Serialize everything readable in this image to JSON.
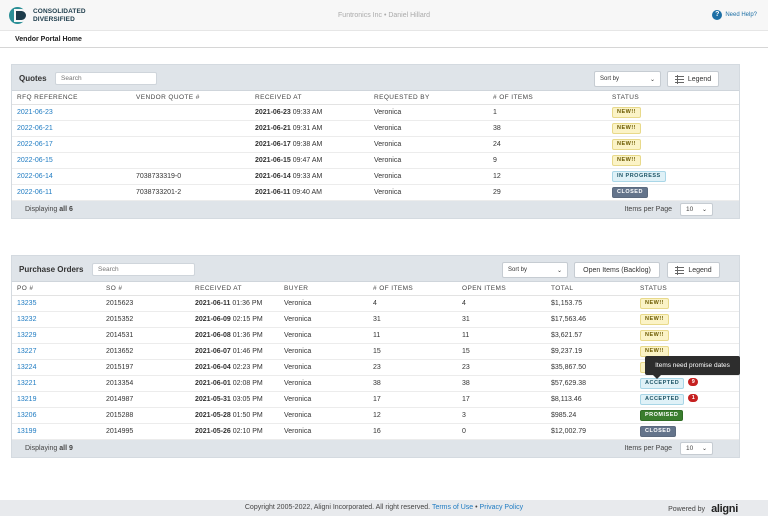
{
  "header": {
    "logo_line1": "CONSOLIDATED",
    "logo_line2": "DIVERSIFIED",
    "center_title": "Funtronics Inc • Daniel Hillard",
    "help_label": "Need Help?"
  },
  "page_title": "Vendor Portal Home",
  "quotes": {
    "title": "Quotes",
    "search_placeholder": "Search",
    "sort_label": "Sort by",
    "legend_label": "Legend",
    "columns": [
      "RFQ REFERENCE",
      "VENDOR QUOTE #",
      "RECEIVED AT",
      "REQUESTED BY",
      "# OF ITEMS",
      "STATUS"
    ],
    "rows": [
      {
        "ref": "2021-06-23",
        "vq": "",
        "date": "2021-06-23",
        "time": "09:33 AM",
        "by": "Veronica",
        "items": "1",
        "status": "NEW!!",
        "kind": "new"
      },
      {
        "ref": "2022-06-21",
        "vq": "",
        "date": "2021-06-21",
        "time": "09:31 AM",
        "by": "Veronica",
        "items": "38",
        "status": "NEW!!",
        "kind": "new"
      },
      {
        "ref": "2022-06-17",
        "vq": "",
        "date": "2021-06-17",
        "time": "09:38 AM",
        "by": "Veronica",
        "items": "24",
        "status": "NEW!!",
        "kind": "new"
      },
      {
        "ref": "2022-06-15",
        "vq": "",
        "date": "2021-06-15",
        "time": "09:47 AM",
        "by": "Veronica",
        "items": "9",
        "status": "NEW!!",
        "kind": "new"
      },
      {
        "ref": "2022-06-14",
        "vq": "7038733319-0",
        "date": "2021-06-14",
        "time": "09:33 AM",
        "by": "Veronica",
        "items": "12",
        "status": "IN PROGRESS",
        "kind": "prog"
      },
      {
        "ref": "2022-06-11",
        "vq": "7038733201-2",
        "date": "2021-06-11",
        "time": "09:40 AM",
        "by": "Veronica",
        "items": "29",
        "status": "CLOSED",
        "kind": "closed"
      }
    ],
    "displaying_prefix": "Displaying",
    "displaying_count": "all 6",
    "per_page_label": "Items per Page",
    "per_page_value": "10"
  },
  "purchase_orders": {
    "title": "Purchase Orders",
    "search_placeholder": "Search",
    "sort_label": "Sort by",
    "backlog_label": "Open Items (Backlog)",
    "legend_label": "Legend",
    "columns": [
      "PO #",
      "SO #",
      "RECEIVED AT",
      "BUYER",
      "# OF ITEMS",
      "OPEN ITEMS",
      "TOTAL",
      "STATUS"
    ],
    "rows": [
      {
        "po": "13235",
        "so": "2015623",
        "date": "2021-06-11",
        "time": "01:36 PM",
        "buyer": "Veronica",
        "items": "4",
        "open": "4",
        "total": "$1,153.75",
        "status": "NEW!!",
        "kind": "new",
        "count": ""
      },
      {
        "po": "13232",
        "so": "2015352",
        "date": "2021-06-09",
        "time": "02:15 PM",
        "buyer": "Veronica",
        "items": "31",
        "open": "31",
        "total": "$17,563.46",
        "status": "NEW!!",
        "kind": "new",
        "count": ""
      },
      {
        "po": "13229",
        "so": "2014531",
        "date": "2021-06-08",
        "time": "01:36 PM",
        "buyer": "Veronica",
        "items": "11",
        "open": "11",
        "total": "$3,621.57",
        "status": "NEW!!",
        "kind": "new",
        "count": ""
      },
      {
        "po": "13227",
        "so": "2013652",
        "date": "2021-06-07",
        "time": "01:46 PM",
        "buyer": "Veronica",
        "items": "15",
        "open": "15",
        "total": "$9,237.19",
        "status": "NEW!!",
        "kind": "new",
        "count": ""
      },
      {
        "po": "13224",
        "so": "2015197",
        "date": "2021-06-04",
        "time": "02:23 PM",
        "buyer": "Veronica",
        "items": "23",
        "open": "23",
        "total": "$35,867.50",
        "status": "NEW!!",
        "kind": "new",
        "count": ""
      },
      {
        "po": "13221",
        "so": "2013354",
        "date": "2021-06-01",
        "time": "02:08 PM",
        "buyer": "Veronica",
        "items": "38",
        "open": "38",
        "total": "$57,629.38",
        "status": "ACCEPTED",
        "kind": "acc",
        "count": "9"
      },
      {
        "po": "13219",
        "so": "2014987",
        "date": "2021-05-31",
        "time": "03:05 PM",
        "buyer": "Veronica",
        "items": "17",
        "open": "17",
        "total": "$8,113.46",
        "status": "ACCEPTED",
        "kind": "acc",
        "count": "1"
      },
      {
        "po": "13206",
        "so": "2015288",
        "date": "2021-05-28",
        "time": "01:50 PM",
        "buyer": "Veronica",
        "items": "12",
        "open": "3",
        "total": "$985.24",
        "status": "PROMISED",
        "kind": "prom",
        "count": ""
      },
      {
        "po": "13199",
        "so": "2014995",
        "date": "2021-05-26",
        "time": "02:10 PM",
        "buyer": "Veronica",
        "items": "16",
        "open": "0",
        "total": "$12,002.79",
        "status": "CLOSED",
        "kind": "closed",
        "count": ""
      }
    ],
    "displaying_prefix": "Displaying",
    "displaying_count": "all 9",
    "per_page_label": "Items per Page",
    "per_page_value": "10",
    "tooltip": "Items need promise dates"
  },
  "footer": {
    "copyright": "Copyright 2005-2022, Aligni Incorporated. All right reserved.",
    "terms": "Terms of Use",
    "sep": "•",
    "privacy": "Privacy Policy",
    "powered_by": "Powered by",
    "brand": "aligni"
  }
}
